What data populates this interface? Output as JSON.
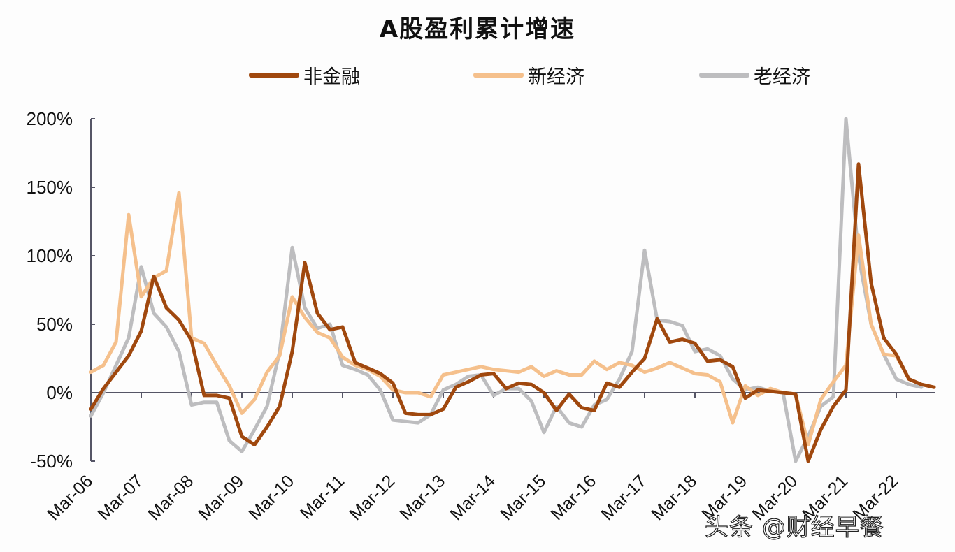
{
  "header": {
    "title": "A股盈利累计增速"
  },
  "legend": [
    {
      "label": "非金融",
      "color": "#a0480e"
    },
    {
      "label": "新经济",
      "color": "#f5c08c"
    },
    {
      "label": "老经济",
      "color": "#bdbdbf"
    }
  ],
  "watermark": "头条 @财经早餐",
  "chart_data": {
    "type": "line",
    "title": "A股盈利累计增速",
    "xlabel": "",
    "ylabel": "",
    "ylim": [
      -50,
      200
    ],
    "yticks": [
      "200%",
      "150%",
      "100%",
      "50%",
      "0%",
      "-50%"
    ],
    "ytick_values": [
      200,
      150,
      100,
      50,
      0,
      -50
    ],
    "xtick_labels": [
      "Mar-06",
      "Mar-07",
      "Mar-08",
      "Mar-09",
      "Mar-10",
      "Mar-11",
      "Mar-12",
      "Mar-13",
      "Mar-14",
      "Mar-15",
      "Mar-16",
      "Mar-17",
      "Mar-18",
      "Mar-19",
      "Mar-20",
      "Mar-21",
      "Mar-22"
    ],
    "grid": false,
    "legend_position": "top",
    "frequency": "quarterly",
    "x_start": "Mar-06",
    "series": [
      {
        "name": "非金融",
        "color": "#a0480e",
        "values": [
          -12,
          3,
          15,
          27,
          45,
          85,
          62,
          53,
          38,
          -2,
          -2,
          -4,
          -32,
          -38,
          -25,
          -10,
          30,
          95,
          58,
          46,
          48,
          22,
          18,
          14,
          7,
          -15,
          -16,
          -16,
          -12,
          4,
          8,
          13,
          14,
          3,
          7,
          6,
          0,
          -13,
          -1,
          -11,
          -13,
          7,
          4,
          15,
          25,
          54,
          37,
          39,
          36,
          23,
          24,
          19,
          -4,
          2,
          1,
          0,
          -1,
          -50,
          -27,
          -10,
          2,
          167,
          80,
          40,
          28,
          10,
          6,
          4
        ]
      },
      {
        "name": "新经济",
        "color": "#f5c08c",
        "values": [
          15,
          20,
          37,
          130,
          70,
          84,
          89,
          146,
          40,
          36,
          20,
          5,
          -15,
          -5,
          15,
          27,
          70,
          55,
          44,
          40,
          26,
          20,
          17,
          12,
          2,
          0,
          0,
          -3,
          13,
          15,
          17,
          19,
          17,
          16,
          15,
          19,
          12,
          16,
          13,
          13,
          23,
          17,
          22,
          20,
          15,
          18,
          22,
          18,
          14,
          13,
          8,
          -22,
          5,
          -2,
          3,
          0,
          -1,
          -38,
          -5,
          8,
          20,
          115,
          50,
          28,
          27,
          10,
          6,
          4
        ]
      },
      {
        "name": "老经济",
        "color": "#bdbdbf",
        "values": [
          -17,
          0,
          20,
          40,
          92,
          58,
          48,
          30,
          -9,
          -7,
          -7,
          -35,
          -43,
          -27,
          -10,
          30,
          106,
          62,
          47,
          50,
          20,
          17,
          13,
          2,
          -20,
          -21,
          -22,
          -16,
          2,
          6,
          12,
          13,
          -2,
          3,
          3,
          -6,
          -29,
          -10,
          -22,
          -25,
          -9,
          -5,
          10,
          30,
          104,
          53,
          52,
          49,
          30,
          32,
          27,
          10,
          2,
          4,
          1,
          0,
          -50,
          -32,
          -10,
          -3,
          200,
          100,
          50,
          28,
          10,
          6,
          4
        ]
      }
    ]
  }
}
